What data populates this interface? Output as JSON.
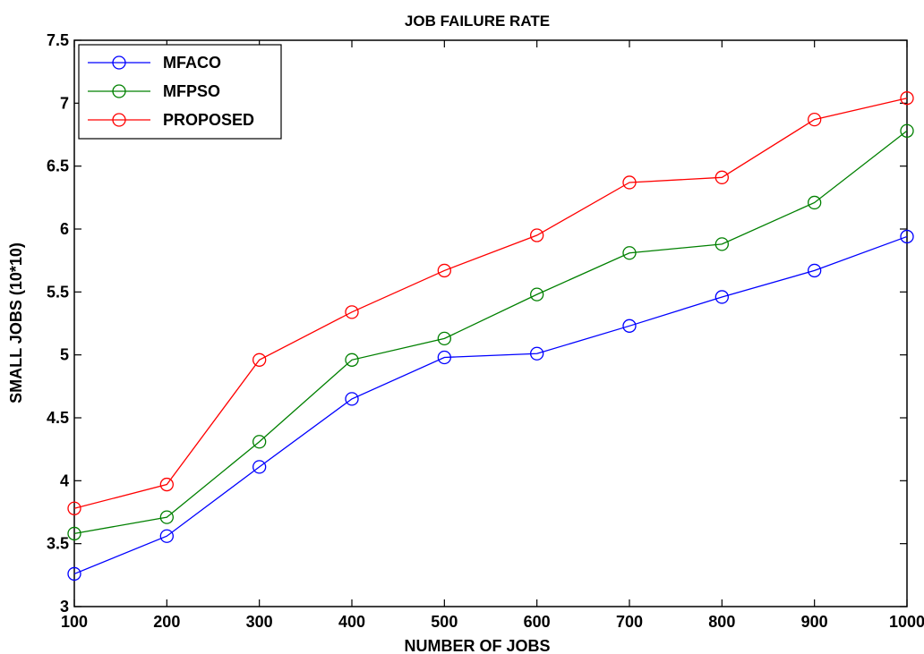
{
  "chart_data": {
    "type": "line",
    "title": "JOB FAILURE RATE",
    "xlabel": "NUMBER OF JOBS",
    "ylabel": "SMALL JOBS (10*10)",
    "x": [
      100,
      200,
      300,
      400,
      500,
      600,
      700,
      800,
      900,
      1000
    ],
    "xlim": [
      100,
      1000
    ],
    "ylim": [
      3,
      7.5
    ],
    "xticks": [
      "100",
      "200",
      "300",
      "400",
      "500",
      "600",
      "700",
      "800",
      "900",
      "1000"
    ],
    "yticks": [
      "3",
      "3.5",
      "4",
      "4.5",
      "5",
      "5.5",
      "6",
      "6.5",
      "7",
      "7.5"
    ],
    "grid": false,
    "legend_position": "top-left",
    "series": [
      {
        "name": "MFACO",
        "color": "#0000ff",
        "marker": "circle",
        "values": [
          3.26,
          3.56,
          4.11,
          4.65,
          4.98,
          5.01,
          5.23,
          5.46,
          5.67,
          5.94
        ]
      },
      {
        "name": "MFPSO",
        "color": "#008000",
        "marker": "circle",
        "values": [
          3.58,
          3.71,
          4.31,
          4.96,
          5.13,
          5.48,
          5.81,
          5.88,
          6.21,
          6.78
        ]
      },
      {
        "name": "PROPOSED",
        "color": "#ff0000",
        "marker": "circle",
        "values": [
          3.78,
          3.97,
          4.96,
          5.34,
          5.67,
          5.95,
          6.37,
          6.41,
          6.87,
          7.04
        ]
      }
    ]
  }
}
